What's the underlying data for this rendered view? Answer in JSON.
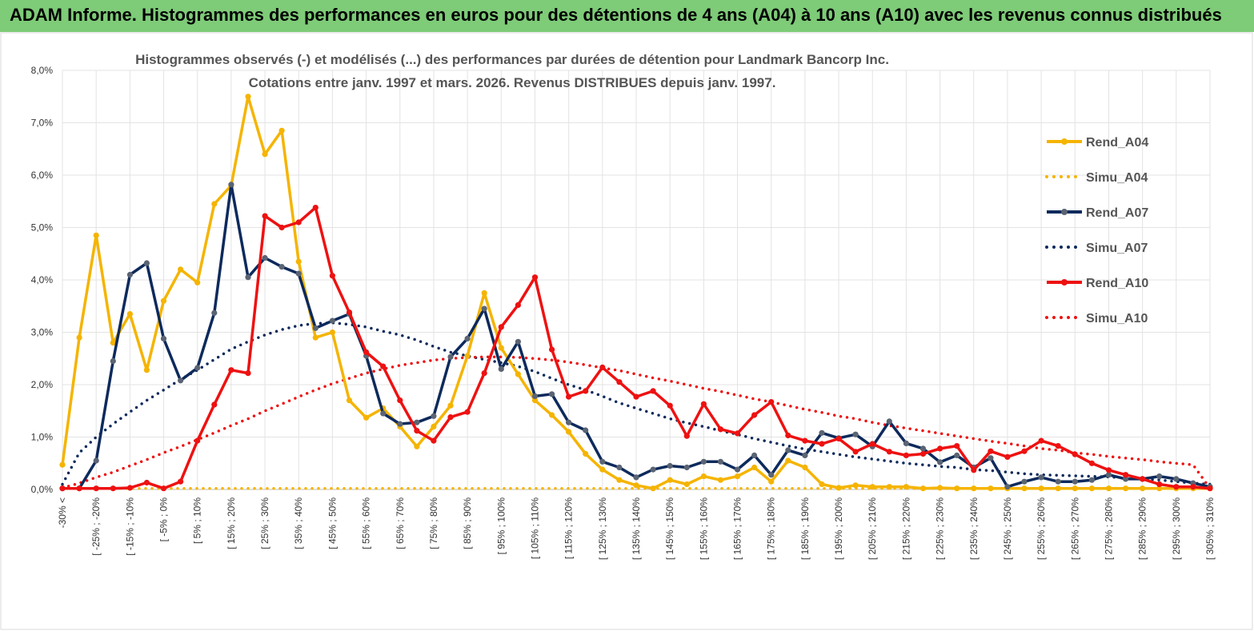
{
  "banner": {
    "title": "ADAM Informe. Histogrammes des performances en euros pour des détentions de 4 ans (A04) à 10 ans (A10) avec les revenus connus distribués",
    "color": "#7ecb78"
  },
  "chart_data": {
    "type": "line",
    "title": "Histogrammes observés (-) et modélisés (...) des performances par durées de détention pour Landmark Bancorp Inc.",
    "subtitle": "Cotations entre janv. 1997 et mars. 2026. Revenus DISTRIBUES depuis janv. 1997.",
    "xlabel": "",
    "ylabel": "",
    "ylim": [
      0,
      8
    ],
    "yticks": [
      "0,0%",
      "1,0%",
      "2,0%",
      "3,0%",
      "4,0%",
      "5,0%",
      "6,0%",
      "7,0%",
      "8,0%"
    ],
    "grid": true,
    "legend_position": "right",
    "x_labels_shown": [
      "-30% <",
      "[ -25% ; -20%",
      "[ -15% ; -10%",
      "[ -5% ; 0%",
      "[ 5% ; 10%",
      "[ 15% ; 20%",
      "[ 25% ; 30%",
      "[ 35% ; 40%",
      "[ 45% ; 50%",
      "[ 55% ; 60%",
      "[ 65% ; 70%",
      "[ 75% ; 80%",
      "[ 85% ; 90%",
      "[ 95% ; 100%",
      "[ 105% ; 110%",
      "[ 115% ; 120%",
      "[ 125% ; 130%",
      "[ 135% ; 140%",
      "[ 145% ; 150%",
      "[ 155% ; 160%",
      "[ 165% ; 170%",
      "[ 175% ; 180%",
      "[ 185% ; 190%",
      "[ 195% ; 200%",
      "[ 205% ; 210%",
      "[ 215% ; 220%",
      "[ 225% ; 230%",
      "[ 235% ; 240%",
      "[ 245% ; 250%",
      "[ 255% ; 260%",
      "[ 265% ; 270%",
      "[ 275% ; 280%",
      "[ 285% ; 290%",
      "[ 295% ; 300%",
      "[ 305% ; 310%"
    ],
    "n_points": 69,
    "series": [
      {
        "name": "Rend_A04",
        "style": "solid",
        "color": "#f5b400",
        "values": [
          0.47,
          2.9,
          4.85,
          2.8,
          3.35,
          2.28,
          3.6,
          4.2,
          3.95,
          5.45,
          5.8,
          7.5,
          6.4,
          6.85,
          4.35,
          2.9,
          3.0,
          1.7,
          1.37,
          1.55,
          1.2,
          0.82,
          1.2,
          1.6,
          2.55,
          3.75,
          2.7,
          2.2,
          1.7,
          1.42,
          1.1,
          0.68,
          0.38,
          0.18,
          0.08,
          0.02,
          0.18,
          0.1,
          0.25,
          0.18,
          0.25,
          0.42,
          0.15,
          0.55,
          0.42,
          0.1,
          0.03,
          0.08,
          0.05,
          0.05,
          0.05,
          0.02,
          0.03,
          0.02,
          0.02,
          0.02,
          0.02,
          0.02,
          0.02,
          0.02,
          0.02,
          0.02,
          0.02,
          0.02,
          0.02,
          0.02,
          0.02,
          0.02,
          0.02
        ]
      },
      {
        "name": "Simu_A04",
        "style": "dotted",
        "color": "#f5b400",
        "values": [
          0.02,
          0.02,
          0.02,
          0.02,
          0.02,
          0.02,
          0.02,
          0.02,
          0.02,
          0.02,
          0.02,
          0.02,
          0.02,
          0.02,
          0.02,
          0.02,
          0.02,
          0.02,
          0.02,
          0.02,
          0.02,
          0.02,
          0.02,
          0.02,
          0.02,
          0.02,
          0.02,
          0.02,
          0.02,
          0.02,
          0.02,
          0.02,
          0.02,
          0.02,
          0.02,
          0.02,
          0.02,
          0.02,
          0.02,
          0.02,
          0.02,
          0.02,
          0.02,
          0.02,
          0.02,
          0.02,
          0.02,
          0.02,
          0.02,
          0.02,
          0.02,
          0.02,
          0.02,
          0.02,
          0.02,
          0.02,
          0.02,
          0.02,
          0.02,
          0.02,
          0.02,
          0.02,
          0.02,
          0.02,
          0.02,
          0.02,
          0.02,
          0.02,
          0.02
        ]
      },
      {
        "name": "Rend_A07",
        "style": "solid",
        "color": "#0d2a5c",
        "values": [
          0.02,
          0.02,
          0.55,
          2.45,
          4.1,
          4.32,
          2.88,
          2.08,
          2.32,
          3.37,
          5.82,
          4.05,
          4.42,
          4.25,
          4.12,
          3.08,
          3.22,
          3.35,
          2.55,
          1.45,
          1.25,
          1.28,
          1.4,
          2.53,
          2.88,
          3.45,
          2.3,
          2.82,
          1.78,
          1.82,
          1.28,
          1.13,
          0.53,
          0.42,
          0.23,
          0.38,
          0.45,
          0.42,
          0.53,
          0.53,
          0.38,
          0.65,
          0.28,
          0.75,
          0.65,
          1.08,
          0.98,
          1.05,
          0.82,
          1.3,
          0.88,
          0.78,
          0.52,
          0.65,
          0.42,
          0.6,
          0.05,
          0.15,
          0.23,
          0.15,
          0.15,
          0.18,
          0.28,
          0.2,
          0.2,
          0.25,
          0.2,
          0.12,
          0.05
        ]
      },
      {
        "name": "Simu_A07",
        "style": "dotted",
        "color": "#0d2a5c",
        "values": [
          0.1,
          0.7,
          1.0,
          1.25,
          1.48,
          1.7,
          1.9,
          2.1,
          2.28,
          2.48,
          2.68,
          2.82,
          2.95,
          3.05,
          3.13,
          3.17,
          3.18,
          3.15,
          3.1,
          3.02,
          2.95,
          2.85,
          2.73,
          2.62,
          2.55,
          2.48,
          2.42,
          2.35,
          2.25,
          2.12,
          2.0,
          1.9,
          1.78,
          1.65,
          1.55,
          1.45,
          1.35,
          1.27,
          1.2,
          1.12,
          1.05,
          0.97,
          0.9,
          0.83,
          0.77,
          0.72,
          0.67,
          0.62,
          0.58,
          0.54,
          0.5,
          0.47,
          0.44,
          0.42,
          0.38,
          0.36,
          0.33,
          0.3,
          0.28,
          0.27,
          0.26,
          0.25,
          0.24,
          0.22,
          0.2,
          0.18,
          0.15,
          0.12,
          0.1
        ]
      },
      {
        "name": "Rend_A10",
        "style": "solid",
        "color": "#ee1111",
        "values": [
          0.02,
          0.02,
          0.02,
          0.02,
          0.03,
          0.13,
          0.02,
          0.15,
          0.93,
          1.62,
          2.28,
          2.22,
          5.22,
          5.0,
          5.1,
          5.38,
          4.08,
          3.38,
          2.62,
          2.35,
          1.7,
          1.12,
          0.93,
          1.38,
          1.48,
          2.22,
          3.1,
          3.52,
          4.05,
          2.67,
          1.77,
          1.88,
          2.33,
          2.05,
          1.77,
          1.88,
          1.6,
          1.02,
          1.63,
          1.15,
          1.07,
          1.42,
          1.67,
          1.03,
          0.93,
          0.87,
          0.97,
          0.72,
          0.87,
          0.72,
          0.65,
          0.68,
          0.78,
          0.83,
          0.37,
          0.73,
          0.62,
          0.73,
          0.93,
          0.83,
          0.67,
          0.5,
          0.37,
          0.28,
          0.2,
          0.1,
          0.05,
          0.05,
          0.02
        ]
      },
      {
        "name": "Simu_A10",
        "style": "dotted",
        "color": "#ee1111",
        "values": [
          0.03,
          0.12,
          0.23,
          0.33,
          0.45,
          0.57,
          0.7,
          0.82,
          0.95,
          1.08,
          1.22,
          1.35,
          1.5,
          1.63,
          1.77,
          1.9,
          2.02,
          2.12,
          2.22,
          2.3,
          2.37,
          2.42,
          2.47,
          2.5,
          2.52,
          2.53,
          2.53,
          2.52,
          2.5,
          2.47,
          2.43,
          2.38,
          2.32,
          2.27,
          2.2,
          2.13,
          2.07,
          2.0,
          1.93,
          1.87,
          1.8,
          1.73,
          1.67,
          1.6,
          1.53,
          1.47,
          1.4,
          1.35,
          1.28,
          1.22,
          1.17,
          1.12,
          1.07,
          1.02,
          0.97,
          0.92,
          0.88,
          0.83,
          0.78,
          0.75,
          0.7,
          0.67,
          0.63,
          0.6,
          0.57,
          0.53,
          0.5,
          0.47,
          0.02
        ]
      }
    ]
  }
}
